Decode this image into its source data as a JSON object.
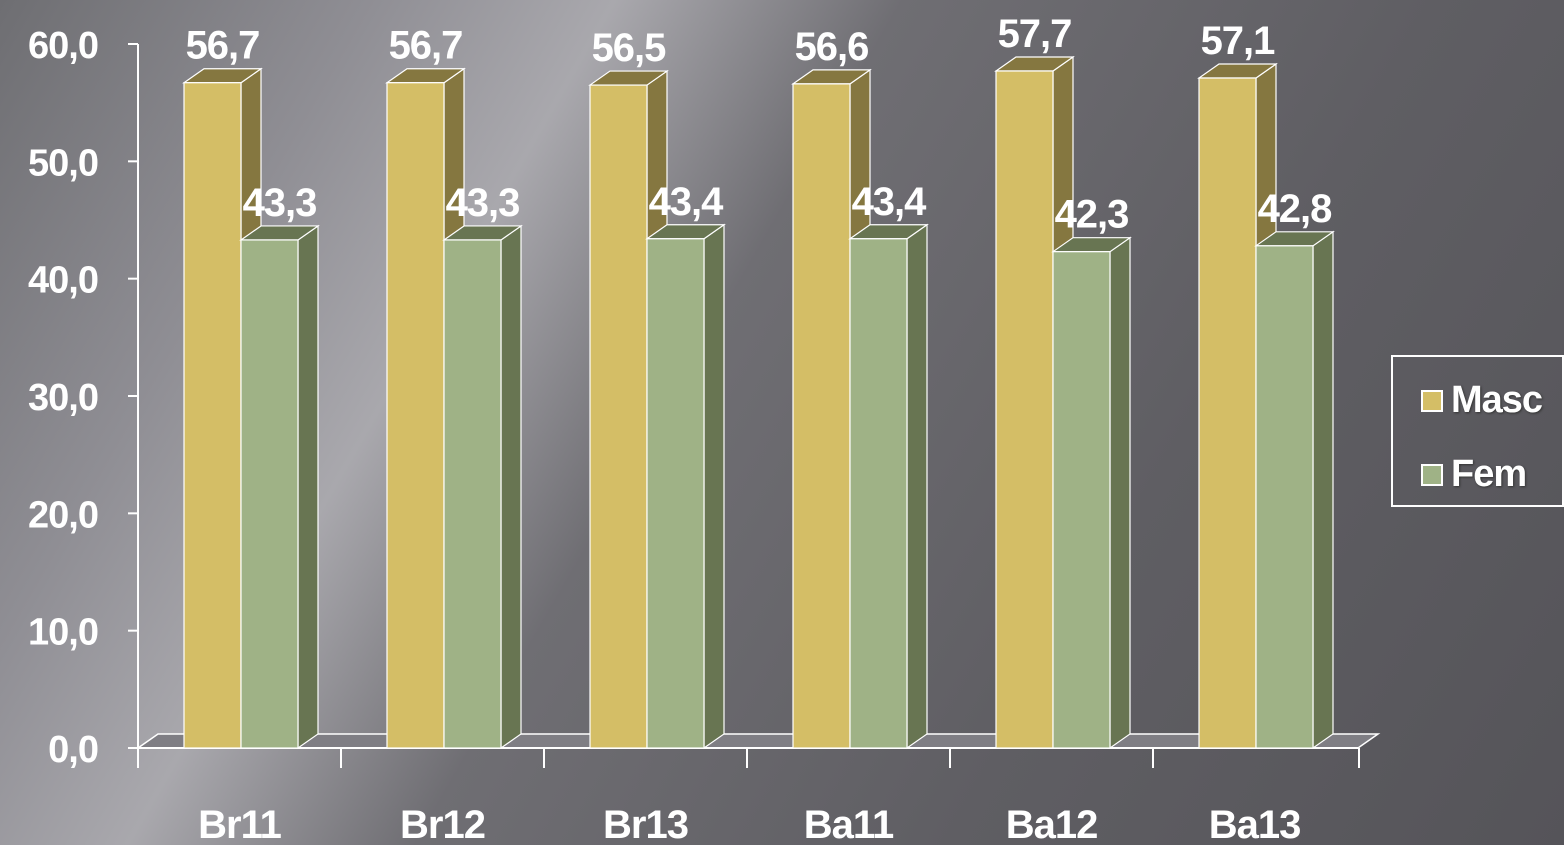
{
  "chart_data": {
    "type": "bar",
    "categories": [
      "Br11",
      "Br12",
      "Br13",
      "Ba11",
      "Ba12",
      "Ba13"
    ],
    "series": [
      {
        "name": "Masc",
        "values": [
          56.7,
          56.7,
          56.5,
          56.6,
          57.7,
          57.1
        ],
        "labels": [
          "56,7",
          "56,7",
          "56,5",
          "56,6",
          "57,7",
          "57,1"
        ],
        "color": "#d4be66",
        "side_color": "#857740"
      },
      {
        "name": "Fem",
        "values": [
          43.3,
          43.3,
          43.4,
          43.4,
          42.3,
          42.8
        ],
        "labels": [
          "43,3",
          "43,3",
          "43,4",
          "43,4",
          "42,3",
          "42,8"
        ],
        "color": "#9fb286",
        "side_color": "#687552"
      }
    ],
    "yticks": [
      0,
      10,
      20,
      30,
      40,
      50,
      60
    ],
    "ytick_labels": [
      "0,0",
      "10,0",
      "20,0",
      "30,0",
      "40,0",
      "50,0",
      "60,0"
    ],
    "ylim": [
      0,
      60
    ],
    "legend_position": "right",
    "grid": false,
    "style": "3d"
  },
  "legend": {
    "items": [
      {
        "label": "Masc",
        "color": "#d4be66"
      },
      {
        "label": "Fem",
        "color": "#9fb286"
      }
    ]
  }
}
